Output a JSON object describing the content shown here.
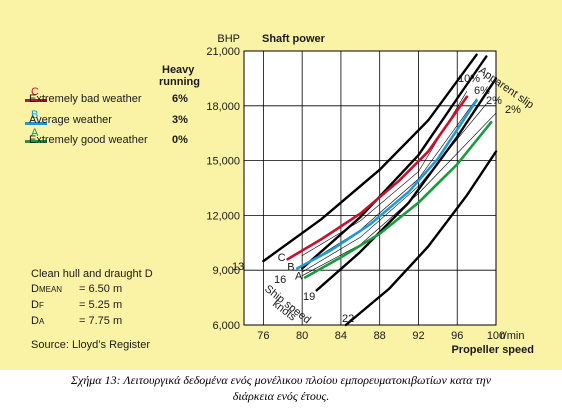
{
  "chart_data": {
    "type": "line",
    "title": "Shaft power",
    "ylabel": "BHP",
    "xlabel": "Propeller speed",
    "x_unit": "r/min",
    "xlim": [
      74,
      100
    ],
    "ylim": [
      6000,
      21000
    ],
    "x_ticks": [
      "76",
      "80",
      "84",
      "88",
      "92",
      "96",
      "100"
    ],
    "y_ticks": [
      "6,000",
      "9,000",
      "12,000",
      "15,000",
      "18,000",
      "21,000"
    ],
    "grid": true,
    "legend_header": [
      "Heavy",
      "running"
    ],
    "legend": [
      {
        "letter": "C",
        "name": "Extremely bad weather",
        "value": "6%",
        "color": "#c8102e"
      },
      {
        "letter": "B",
        "name": "Average weather",
        "value": "3%",
        "color": "#1e9ad6"
      },
      {
        "letter": "A",
        "name": "Extremely good weather",
        "value": "0%",
        "color": "#1a9a3c"
      }
    ],
    "series": [
      {
        "letter": "C",
        "color": "#c8102e",
        "x": [
          78.5,
          82,
          86,
          90,
          93,
          97
        ],
        "y": [
          9600,
          10700,
          12100,
          13900,
          15500,
          18500
        ]
      },
      {
        "letter": "B",
        "color": "#1e9ad6",
        "x": [
          79.5,
          83,
          87,
          91,
          94,
          98
        ],
        "y": [
          9100,
          10100,
          11500,
          13300,
          15100,
          18300
        ]
      },
      {
        "letter": "A",
        "color": "#1a9a3c",
        "x": [
          80.3,
          84,
          88,
          92,
          96,
          99.5
        ],
        "y": [
          8600,
          9700,
          11000,
          12700,
          14800,
          17100
        ]
      }
    ],
    "ship_speed_lines": [
      {
        "label": "13",
        "x": [
          76,
          82,
          88,
          93,
          98
        ],
        "y": [
          9500,
          11800,
          14500,
          17200,
          20800
        ]
      },
      {
        "label": "16",
        "x": [
          80,
          86,
          92,
          96,
          99
        ],
        "y": [
          9100,
          11900,
          15300,
          18400,
          20700
        ]
      },
      {
        "label": "19",
        "x": [
          81.5,
          86,
          91,
          96,
          100
        ],
        "y": [
          7900,
          10000,
          12700,
          16300,
          19500
        ]
      },
      {
        "label": "22",
        "x": [
          84.5,
          89,
          93,
          97,
          100
        ],
        "y": [
          6000,
          8000,
          10300,
          13100,
          15500
        ]
      }
    ],
    "ship_speed_label": [
      "Ship speed",
      "knots"
    ],
    "slip_lines": [
      {
        "label": "10%",
        "x": [
          80,
          86,
          92,
          97
        ],
        "y": [
          9800,
          11700,
          14400,
          18800
        ]
      },
      {
        "label": "6%",
        "x": [
          80,
          86,
          92,
          98
        ],
        "y": [
          9200,
          11200,
          14000,
          18400
        ]
      },
      {
        "label": "2%",
        "x": [
          80,
          86,
          92,
          99
        ],
        "y": [
          8900,
          10800,
          13600,
          18100
        ]
      },
      {
        "label": "2%",
        "x": [
          80,
          86,
          92,
          100
        ],
        "y": [
          8700,
          10400,
          13200,
          17600
        ]
      }
    ],
    "slip_label": "Apparent slip",
    "notes": {
      "line1": "Clean hull and draught D",
      "dmean": "D",
      "dmean_sub": "MEAN",
      "dmean_val": "= 6.50 m",
      "df": "D",
      "df_sub": "F",
      "df_val": "= 5.25 m",
      "da": "D",
      "da_sub": "A",
      "da_val": "= 7.75 m",
      "source": "Source: Lloyd’s Register"
    }
  },
  "caption": {
    "line1": "Σχήμα 13: Λειτουργικά δεδομένα ενός μονέλικου πλοίου εμπορευματοκιβωτίων κατα την",
    "line2": "διάρκεια ενός έτους."
  }
}
